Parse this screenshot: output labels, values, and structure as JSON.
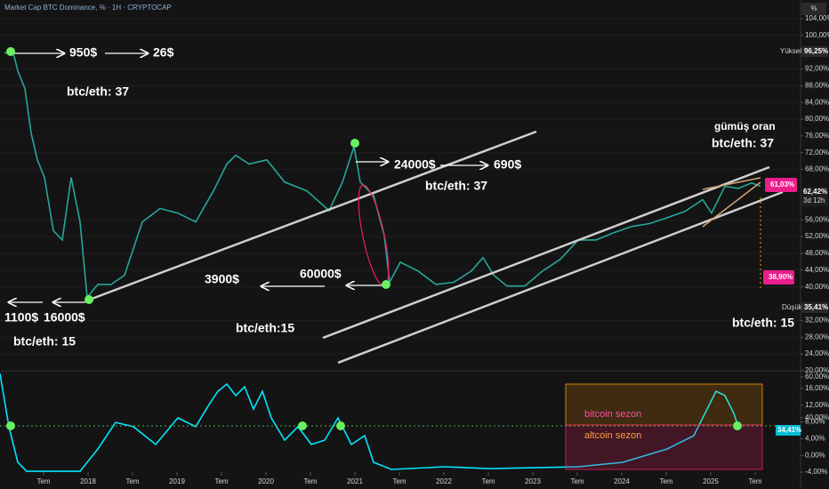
{
  "chart_data": [
    {
      "type": "line",
      "title": "Market Cap BTC Dominance, % · 1H · CRYPTOCAP",
      "unit_button": "%",
      "color": "#26a69a",
      "grid": true,
      "x": [
        2017.06,
        2017.16,
        2017.21,
        2017.29,
        2017.36,
        2017.43,
        2017.51,
        2017.61,
        2017.71,
        2017.81,
        2017.91,
        2017.99,
        2018.11,
        2018.26,
        2018.41,
        2018.61,
        2018.81,
        2019.01,
        2019.21,
        2019.41,
        2019.56,
        2019.66,
        2019.81,
        2020.01,
        2020.21,
        2020.46,
        2020.71,
        2020.86,
        2020.99,
        2021.06,
        2021.21,
        2021.33,
        2021.39,
        2021.51,
        2021.71,
        2021.91,
        2022.11,
        2022.31,
        2022.44,
        2022.56,
        2022.71,
        2022.91,
        2023.11,
        2023.31,
        2023.51,
        2023.71,
        2023.91,
        2024.11,
        2024.31,
        2024.51,
        2024.71,
        2024.91,
        2025.01,
        2025.16,
        2025.31,
        2025.46,
        2025.56
      ],
      "values": [
        95.8,
        95.8,
        91.5,
        87.3,
        76.7,
        70.3,
        66.1,
        53.4,
        51.2,
        66.1,
        55.5,
        37.5,
        40.6,
        40.6,
        42.8,
        55.5,
        58.7,
        57.6,
        55.5,
        62.9,
        69.3,
        71.4,
        69.3,
        70.3,
        65.0,
        62.9,
        58.2,
        65.0,
        73.5,
        65.0,
        61.8,
        52.3,
        41.1,
        45.9,
        43.8,
        40.6,
        41.1,
        43.8,
        47.0,
        42.8,
        40.2,
        40.2,
        43.8,
        46.6,
        51.2,
        51.2,
        52.9,
        54.4,
        55.1,
        56.5,
        58.0,
        60.8,
        57.6,
        64.0,
        63.5,
        64.8,
        64.0
      ],
      "xlim": [
        2017.01,
        2026.01
      ],
      "ylim": [
        20,
        108
      ],
      "yticks": [
        {
          "value": 104,
          "label": "104,00%"
        },
        {
          "value": 100,
          "label": "100,00%"
        },
        {
          "value": 92,
          "label": "92,00%"
        },
        {
          "value": 88,
          "label": "88,00%"
        },
        {
          "value": 84,
          "label": "84,00%"
        },
        {
          "value": 80,
          "label": "80,00%"
        },
        {
          "value": 76,
          "label": "76,00%"
        },
        {
          "value": 72,
          "label": "72,00%"
        },
        {
          "value": 68,
          "label": "68,00%"
        },
        {
          "value": 56,
          "label": "56,00%"
        },
        {
          "value": 52,
          "label": "52,00%"
        },
        {
          "value": 48,
          "label": "48,00%"
        },
        {
          "value": 44,
          "label": "44,00%"
        },
        {
          "value": 40,
          "label": "40,00%"
        },
        {
          "value": 32,
          "label": "32,00%"
        },
        {
          "value": 28,
          "label": "28,00%"
        },
        {
          "value": 24,
          "label": "24,00%"
        },
        {
          "value": 20,
          "label": "20,00%"
        }
      ],
      "annotations": [
        "950$",
        "26$",
        "btc/eth: 37",
        "24000$",
        "690$",
        "btc/eth: 37",
        "gümüş oran",
        "btc/eth: 37",
        "3900$",
        "60000$",
        "1100$",
        "16000$",
        "btc/eth: 15",
        "btc/eth:15",
        "btc/eth: 15",
        "Yüksek",
        "96,25%",
        "Düşük",
        "35,41%",
        "62,42%",
        "3d 12h",
        "61,03%",
        "38,90%"
      ]
    },
    {
      "type": "line",
      "color": "#00e5ff",
      "x": [
        2017.01,
        2017.11,
        2017.21,
        2017.31,
        2017.91,
        2018.11,
        2018.31,
        2018.51,
        2018.76,
        2019.01,
        2019.21,
        2019.36,
        2019.46,
        2019.56,
        2019.66,
        2019.76,
        2019.86,
        2019.96,
        2020.06,
        2020.21,
        2020.36,
        2020.51,
        2020.66,
        2020.81,
        2020.96,
        2021.11,
        2021.21,
        2021.41,
        2022.01,
        2022.51,
        2023.51,
        2024.01,
        2024.51,
        2024.81,
        2024.96,
        2025.06,
        2025.16,
        2025.26,
        2025.31
      ],
      "values": [
        61.7,
        35.7,
        18.3,
        13.9,
        13.9,
        24.8,
        37.8,
        35.7,
        27.0,
        40.0,
        35.7,
        46.5,
        53.0,
        56.5,
        50.9,
        55.2,
        44.3,
        53.0,
        40.0,
        29.1,
        35.7,
        27.0,
        29.1,
        40.0,
        27.0,
        31.3,
        18.3,
        14.8,
        16.1,
        15.2,
        16.1,
        18.3,
        24.8,
        31.3,
        44.3,
        53.0,
        50.9,
        42.2,
        35.7
      ],
      "xlim": [
        2017.01,
        2026.01
      ],
      "ylim": [
        13.5,
        62.6
      ],
      "y2lim": [
        -4,
        20
      ],
      "yticks": [
        {
          "value": 60,
          "label": "60,00%"
        },
        {
          "value": 40,
          "label": "40,00%"
        }
      ],
      "y2ticks": [
        {
          "value": 16,
          "label": "16,00%"
        },
        {
          "value": 12,
          "label": "12,00%"
        },
        {
          "value": 8,
          "label": "8,00%"
        },
        {
          "value": 4,
          "label": "4,00%"
        },
        {
          "value": 0,
          "label": "0,00%"
        },
        {
          "value": -4,
          "label": "-4,00%"
        }
      ],
      "xticks": [
        {
          "value": 2017.5,
          "label": "Tem"
        },
        2018,
        {
          "value": 2018.5,
          "label": "Tem"
        },
        2019,
        {
          "value": 2019.5,
          "label": "Tem"
        },
        2020,
        {
          "value": 2020.5,
          "label": "Tem"
        },
        2021,
        {
          "value": 2021.5,
          "label": "Tem"
        },
        2022,
        {
          "value": 2022.5,
          "label": "Tem"
        },
        2023,
        {
          "value": 2023.5,
          "label": "Tem"
        },
        2024,
        {
          "value": 2024.5,
          "label": "Tem"
        },
        2025,
        {
          "value": 2025.5,
          "label": "Tem"
        }
      ],
      "annotations": [
        "bitcoin sezon",
        "altcoin sezon",
        "34,41%"
      ]
    }
  ]
}
